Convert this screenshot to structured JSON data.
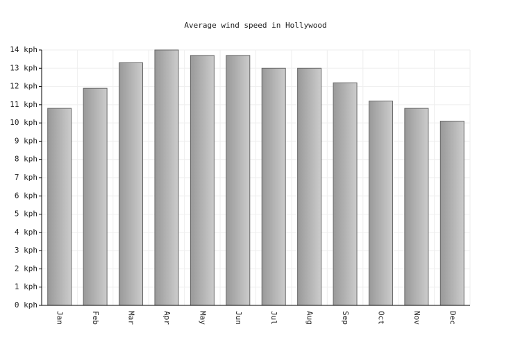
{
  "chart_data": {
    "type": "bar",
    "title": "Average wind speed in Hollywood",
    "categories": [
      "Jan",
      "Feb",
      "Mar",
      "Apr",
      "May",
      "Jun",
      "Jul",
      "Aug",
      "Sep",
      "Oct",
      "Nov",
      "Dec"
    ],
    "values": [
      10.8,
      11.9,
      13.3,
      14.0,
      13.7,
      13.7,
      13.0,
      13.0,
      12.2,
      11.2,
      10.8,
      10.1
    ],
    "color": "#999999",
    "ylim": [
      0,
      14
    ],
    "yticks": [
      {
        "value": 0,
        "label": "0 kph"
      },
      {
        "value": 1,
        "label": "1 kph"
      },
      {
        "value": 2,
        "label": "2 kph"
      },
      {
        "value": 3,
        "label": "3 kph"
      },
      {
        "value": 4,
        "label": "4 kph"
      },
      {
        "value": 5,
        "label": "5 kph"
      },
      {
        "value": 6,
        "label": "6 kph"
      },
      {
        "value": 7,
        "label": "7 kph"
      },
      {
        "value": 8,
        "label": "8 kph"
      },
      {
        "value": 9,
        "label": "9 kph"
      },
      {
        "value": 10,
        "label": "10 kph"
      },
      {
        "value": 11,
        "label": "11 kph"
      },
      {
        "value": 12,
        "label": "12 kph"
      },
      {
        "value": 13,
        "label": "13 kph"
      },
      {
        "value": 14,
        "label": "14 kph"
      }
    ],
    "grid": true
  }
}
